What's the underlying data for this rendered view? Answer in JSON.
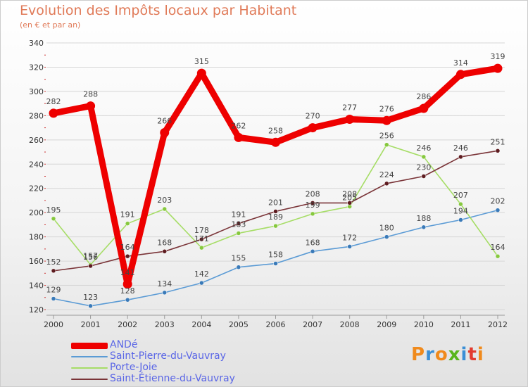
{
  "title": "Evolution des Impôts locaux par Habitant",
  "subtitle": "(en € et par an)",
  "brand": {
    "text": "Proxiti",
    "letter_colors": [
      "#f08a1c",
      "#3b8fd6",
      "#f08a1c",
      "#59b51c",
      "#3b8fd6",
      "#e23b2f",
      "#f08a1c"
    ]
  },
  "chart_data": {
    "type": "line",
    "title": "Evolution des Impôts locaux par Habitant",
    "subtitle": "(en € et par an)",
    "x": [
      "2000",
      "2001",
      "2002",
      "2003",
      "2004",
      "2005",
      "2006",
      "2007",
      "2008",
      "2009",
      "2010",
      "2011",
      "2012"
    ],
    "ylim": [
      120,
      340
    ],
    "yticks": [
      120,
      140,
      160,
      180,
      200,
      220,
      240,
      260,
      280,
      300,
      320,
      340
    ],
    "grid": "horizontal",
    "legend_position": "bottom-left",
    "series": [
      {
        "name": "Saint-Pierre-du-Vauvray",
        "color": "#5b9bd5",
        "marker": "#3a7ab8",
        "values": [
          129,
          123,
          128,
          134,
          142,
          155,
          158,
          168,
          172,
          180,
          188,
          194,
          202
        ]
      },
      {
        "name": "Porte-Joie",
        "color": "#a6dd66",
        "marker": "#86c83e",
        "values": [
          195,
          157,
          191,
          203,
          171,
          183,
          189,
          199,
          205,
          256,
          246,
          207,
          164
        ]
      },
      {
        "name": "Saint-Étienne-du-Vauvray",
        "color": "#7a3438",
        "marker": "#5e1c20",
        "values": [
          152,
          156,
          164,
          168,
          178,
          191,
          201,
          208,
          208,
          224,
          230,
          246,
          251
        ]
      },
      {
        "name": "ANDé",
        "color": "#ee0000",
        "marker": "#ee0000",
        "values": [
          282,
          288,
          141,
          266,
          315,
          262,
          258,
          270,
          277,
          276,
          286,
          314,
          319
        ]
      }
    ]
  }
}
